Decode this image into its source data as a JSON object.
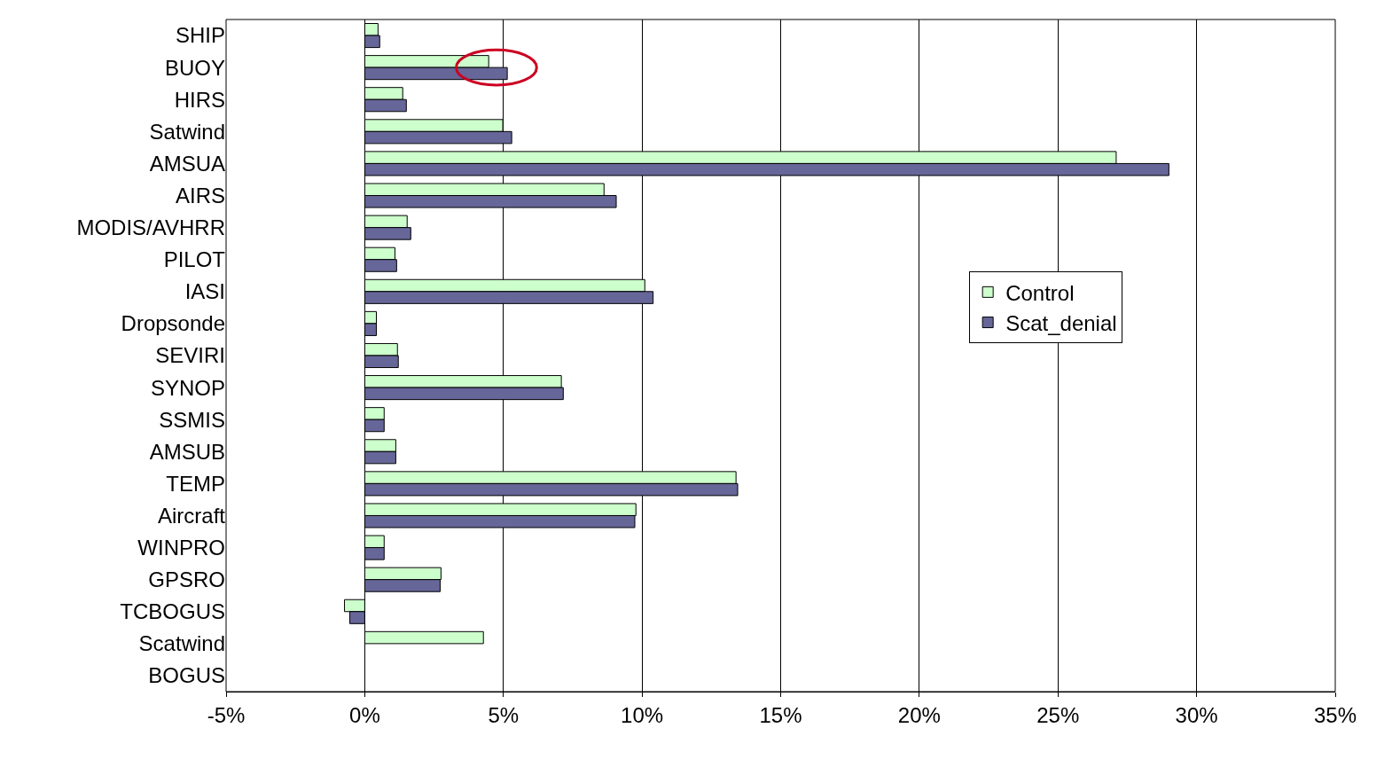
{
  "chart_data": {
    "type": "bar",
    "orientation": "horizontal",
    "categories": [
      "SHIP",
      "BUOY",
      "HIRS",
      "Satwind",
      "AMSUA",
      "AIRS",
      "MODIS/AVHRR",
      "PILOT",
      "IASI",
      "Dropsonde",
      "SEVIRI",
      "SYNOP",
      "SSMIS",
      "AMSUB",
      "TEMP",
      "Aircraft",
      "WINPRO",
      "GPSRO",
      "TCBOGUS",
      "Scatwind",
      "BOGUS"
    ],
    "series": [
      {
        "name": "Control",
        "color": "#ccffcc",
        "values": [
          0.48,
          4.47,
          1.37,
          4.98,
          27.1,
          8.63,
          1.53,
          1.09,
          10.1,
          0.42,
          1.18,
          7.09,
          0.7,
          1.12,
          13.39,
          9.78,
          0.7,
          2.75,
          -0.73,
          4.28,
          null
        ]
      },
      {
        "name": "Scat_denial",
        "color": "#666699",
        "values": [
          0.54,
          5.14,
          1.5,
          5.3,
          29.0,
          9.07,
          1.66,
          1.15,
          10.4,
          0.42,
          1.21,
          7.16,
          0.7,
          1.12,
          13.45,
          9.74,
          0.7,
          2.72,
          -0.54,
          null,
          null
        ]
      }
    ],
    "xlim": [
      -5,
      35
    ],
    "xticks": [
      {
        "value": -5,
        "label": "-5%"
      },
      {
        "value": 0,
        "label": "0%"
      },
      {
        "value": 5,
        "label": "5%"
      },
      {
        "value": 10,
        "label": "10%"
      },
      {
        "value": 15,
        "label": "15%"
      },
      {
        "value": 20,
        "label": "20%"
      },
      {
        "value": 25,
        "label": "25%"
      },
      {
        "value": 30,
        "label": "30%"
      },
      {
        "value": 35,
        "label": "35%"
      }
    ],
    "grid": "x",
    "legend": "right"
  }
}
